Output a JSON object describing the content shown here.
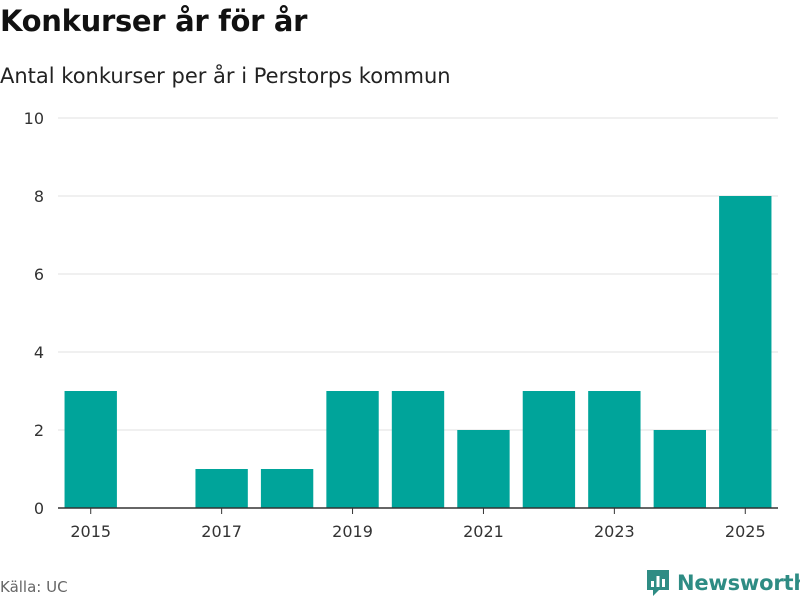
{
  "title": "Konkurser år för år",
  "subtitle": "Antal konkurser per år i Perstorps kommun",
  "source": "Källa: UC",
  "brand": "Newsworthy",
  "colors": {
    "bar": "#00a49a",
    "grid": "#e0e0e0",
    "axis": "#333333",
    "brand": "#2e8c84"
  },
  "chart_data": {
    "type": "bar",
    "title": "Konkurser år för år",
    "subtitle": "Antal konkurser per år i Perstorps kommun",
    "categories": [
      "2015",
      "2016",
      "2017",
      "2018",
      "2019",
      "2020",
      "2021",
      "2022",
      "2023",
      "2024",
      "2025"
    ],
    "values": [
      3,
      0,
      1,
      1,
      3,
      3,
      2,
      3,
      3,
      2,
      8
    ],
    "xticks": [
      "2015",
      "2017",
      "2019",
      "2021",
      "2023",
      "2025"
    ],
    "yticks": [
      0,
      2,
      4,
      6,
      8,
      10
    ],
    "ylim": [
      0,
      10
    ],
    "xlabel": "",
    "ylabel": "",
    "grid": true,
    "legend": "none"
  }
}
